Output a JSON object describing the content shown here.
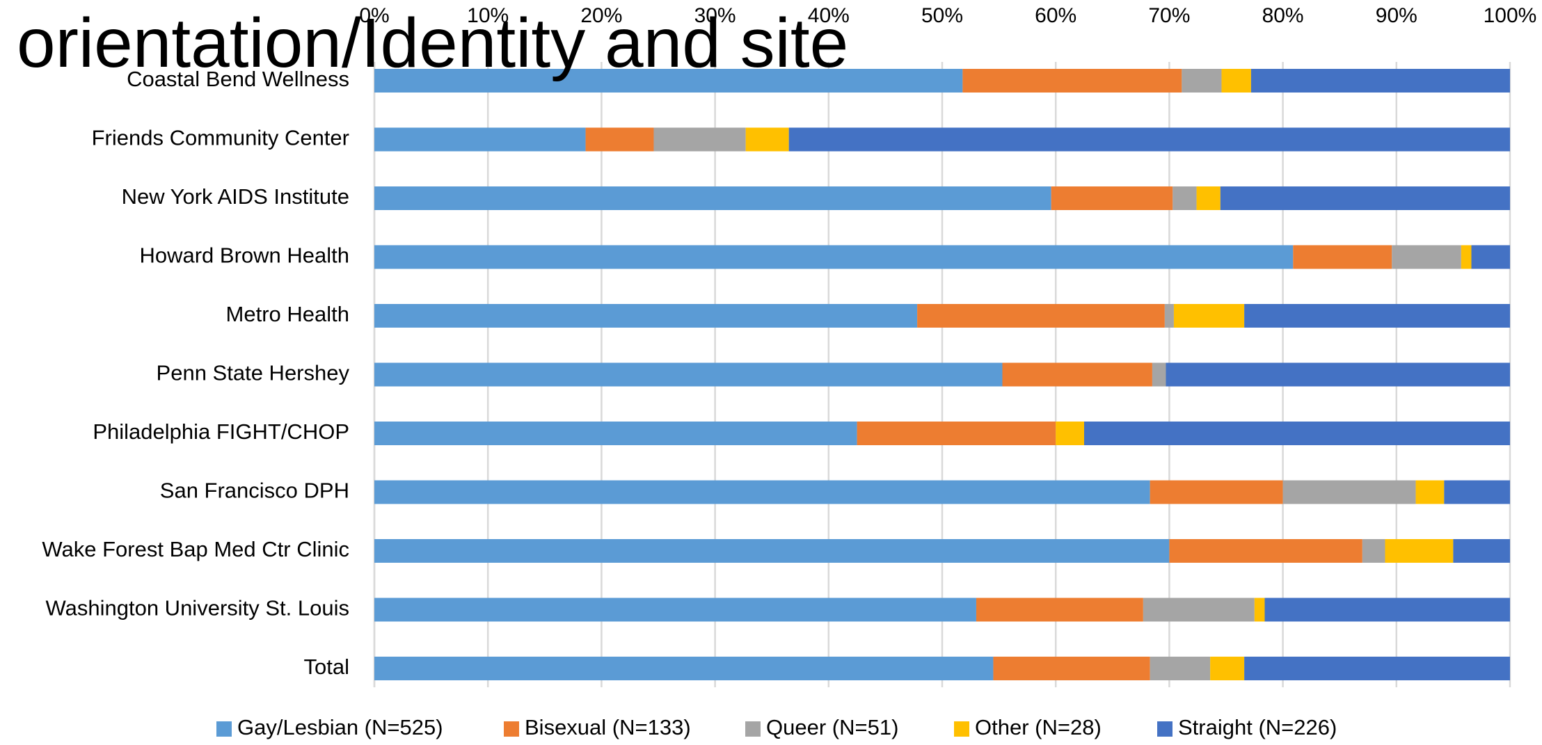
{
  "chart_data": {
    "type": "stacked_barh",
    "title": "orientation/Identity and site",
    "categories": [
      "Coastal Bend Wellness",
      "Friends Community Center",
      "New York AIDS Institute",
      "Howard Brown Health",
      "Metro Health",
      "Penn State Hershey",
      "Philadelphia FIGHT/CHOP",
      "San Francisco DPH",
      "Wake Forest Bap Med Ctr Clinic",
      "Washington University St. Louis",
      "Total"
    ],
    "series": [
      {
        "name": "Gay/Lesbian (N=525)",
        "color": "#5b9bd5",
        "values": [
          51.8,
          18.6,
          59.6,
          80.9,
          47.8,
          55.3,
          42.5,
          68.3,
          70.0,
          53.0,
          54.5
        ]
      },
      {
        "name": "Bisexual (N=133)",
        "color": "#ed7d31",
        "values": [
          19.3,
          6.0,
          10.7,
          8.7,
          21.8,
          13.2,
          17.5,
          11.7,
          17.0,
          14.7,
          13.8
        ]
      },
      {
        "name": "Queer (N=51)",
        "color": "#a5a5a5",
        "values": [
          3.5,
          8.1,
          2.1,
          6.1,
          0.8,
          1.2,
          0,
          11.7,
          2.0,
          9.8,
          5.3
        ]
      },
      {
        "name": "Other (N=28)",
        "color": "#ffc000",
        "values": [
          2.6,
          3.8,
          2.1,
          0.9,
          6.2,
          0,
          2.5,
          2.5,
          6.0,
          0.9,
          3.0
        ]
      },
      {
        "name": "Straight (N=226)",
        "color": "#4472c4",
        "values": [
          22.8,
          63.5,
          25.5,
          3.4,
          23.4,
          30.3,
          37.5,
          5.8,
          5.0,
          21.6,
          23.4
        ]
      }
    ],
    "xlim": [
      0,
      100
    ],
    "xticks": [
      {
        "value": 0,
        "label": "0%"
      },
      {
        "value": 10,
        "label": "10%"
      },
      {
        "value": 20,
        "label": "20%"
      },
      {
        "value": 30,
        "label": "30%"
      },
      {
        "value": 40,
        "label": "40%"
      },
      {
        "value": 50,
        "label": "50%"
      },
      {
        "value": 60,
        "label": "60%"
      },
      {
        "value": 70,
        "label": "70%"
      },
      {
        "value": 80,
        "label": "80%"
      },
      {
        "value": 90,
        "label": "90%"
      },
      {
        "value": 100,
        "label": "100%"
      }
    ],
    "grid": true,
    "legend": "bottom"
  }
}
